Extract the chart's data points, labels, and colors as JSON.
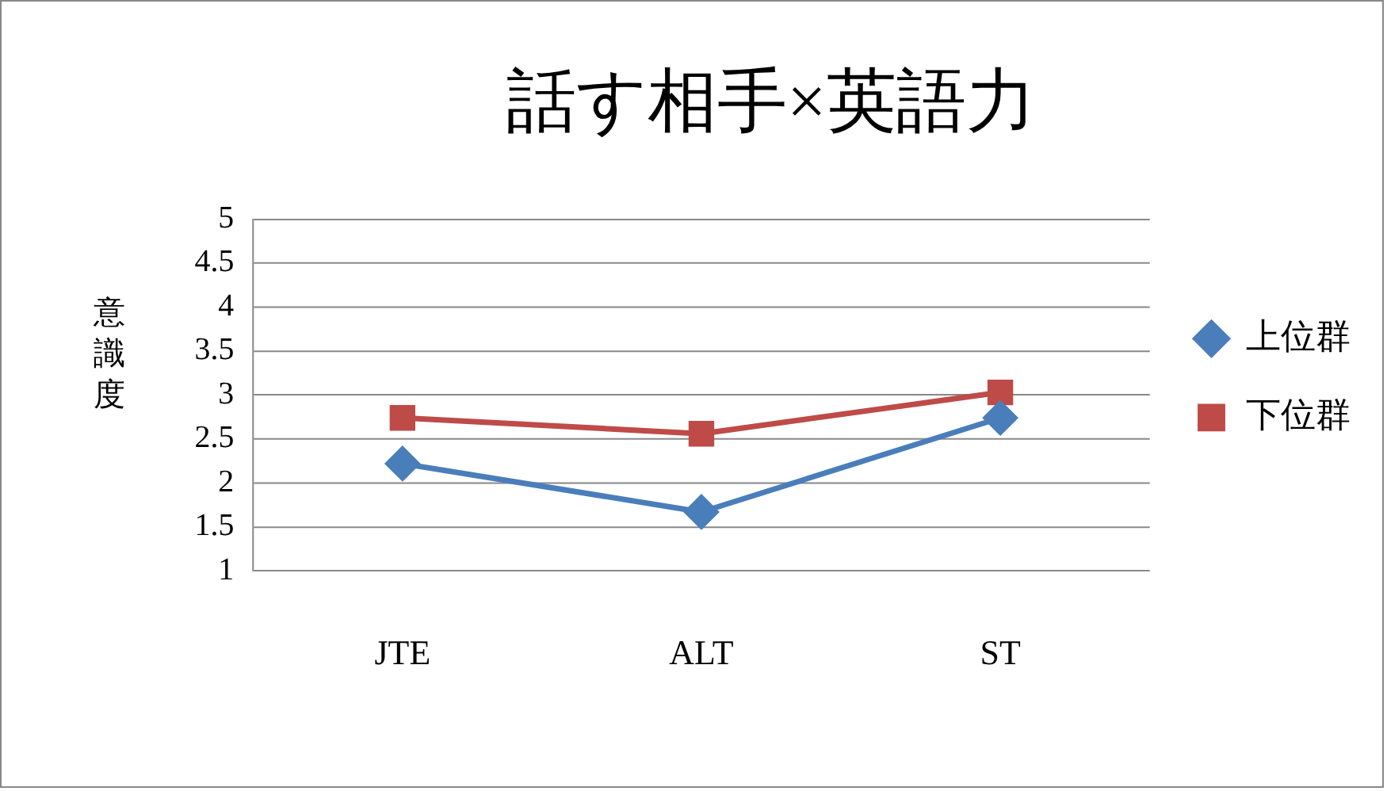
{
  "chart_data": {
    "type": "line",
    "title": "話す相手×英語力",
    "ylabel": "意識度",
    "categories": [
      "JTE",
      "ALT",
      "ST"
    ],
    "series": [
      {
        "name": "上位群",
        "color": "#4a7ebb",
        "values": [
          2.22,
          1.67,
          2.74
        ],
        "marker": "diamond"
      },
      {
        "name": "下位群",
        "color": "#be4b48",
        "values": [
          2.74,
          2.56,
          3.03
        ],
        "marker": "square"
      }
    ],
    "ylim": [
      1,
      5
    ],
    "yticks": [
      1,
      1.5,
      2,
      2.5,
      3,
      3.5,
      4,
      4.5,
      5
    ],
    "grid": "y",
    "legend": "right",
    "line_style": "solid"
  }
}
